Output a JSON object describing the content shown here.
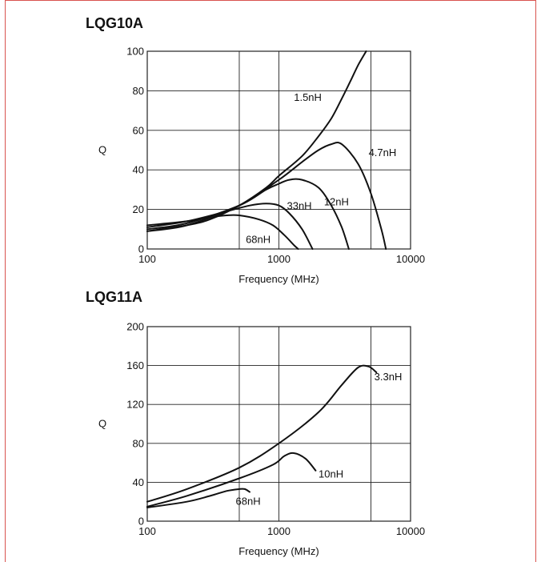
{
  "chart_data": [
    {
      "type": "line",
      "title": "LQG10A",
      "xlabel": "Frequency (MHz)",
      "ylabel": "Q",
      "xscale": "log",
      "xlim": [
        100,
        10000
      ],
      "ylim": [
        0,
        100
      ],
      "xticks": [
        "100",
        "1000",
        "10000"
      ],
      "yticks": [
        "0",
        "20",
        "40",
        "60",
        "80",
        "100"
      ],
      "x_gridlines": [
        100,
        500,
        1000,
        5000,
        10000
      ],
      "grid": true,
      "series": [
        {
          "name": "1.5nH",
          "x": [
            100,
            200,
            300,
            500,
            800,
            1000,
            1500,
            2000,
            2500,
            3000,
            3500,
            4000,
            4600
          ],
          "y": [
            9,
            12,
            15,
            22,
            31,
            37,
            47,
            57,
            66,
            76,
            85,
            93,
            100
          ]
        },
        {
          "name": "4.7nH",
          "x": [
            100,
            200,
            500,
            1000,
            1500,
            2000,
            2500,
            3000,
            4000,
            5000,
            6000,
            6500
          ],
          "y": [
            9,
            12,
            22,
            35,
            44,
            50,
            53,
            53,
            43,
            28,
            10,
            0
          ]
        },
        {
          "name": "12nH",
          "x": [
            100,
            200,
            500,
            800,
            1000,
            1200,
            1500,
            2000,
            2500,
            3000,
            3400
          ],
          "y": [
            10,
            13,
            22,
            30,
            33,
            35,
            35,
            31,
            22,
            11,
            0
          ]
        },
        {
          "name": "33nH",
          "x": [
            100,
            200,
            400,
            600,
            800,
            1000,
            1200,
            1500,
            1800
          ],
          "y": [
            11,
            14,
            19,
            22,
            23,
            22,
            18,
            10,
            0
          ]
        },
        {
          "name": "68nH",
          "x": [
            100,
            200,
            300,
            400,
            500,
            700,
            900,
            1100,
            1300,
            1400
          ],
          "y": [
            12,
            14,
            16,
            17,
            17,
            15,
            12,
            7,
            2,
            0
          ]
        }
      ],
      "annotations": [
        {
          "text": "1.5nH",
          "x": 1300,
          "y": 75
        },
        {
          "text": "4.7nH",
          "x": 4800,
          "y": 47
        },
        {
          "text": "12nH",
          "x": 2200,
          "y": 22
        },
        {
          "text": "33nH",
          "x": 1150,
          "y": 20
        },
        {
          "text": "68nH",
          "x": 560,
          "y": 3
        }
      ]
    },
    {
      "type": "line",
      "title": "LQG11A",
      "xlabel": "Frequency (MHz)",
      "ylabel": "Q",
      "xscale": "log",
      "xlim": [
        100,
        10000
      ],
      "ylim": [
        0,
        200
      ],
      "xticks": [
        "100",
        "1000",
        "10000"
      ],
      "yticks": [
        "0",
        "40",
        "80",
        "120",
        "160",
        "200"
      ],
      "x_gridlines": [
        100,
        500,
        1000,
        5000,
        10000
      ],
      "grid": true,
      "series": [
        {
          "name": "3.3nH",
          "x": [
            100,
            200,
            500,
            1000,
            2000,
            3000,
            4000,
            4800,
            5500
          ],
          "y": [
            20,
            33,
            55,
            80,
            112,
            140,
            158,
            159,
            153
          ]
        },
        {
          "name": "10nH",
          "x": [
            100,
            200,
            500,
            900,
            1100,
            1300,
            1600,
            1900
          ],
          "y": [
            15,
            26,
            44,
            58,
            67,
            70,
            64,
            52
          ]
        },
        {
          "name": "68nH",
          "x": [
            100,
            200,
            300,
            400,
            500,
            550,
            600
          ],
          "y": [
            14,
            20,
            26,
            31,
            33,
            33,
            30
          ]
        }
      ],
      "annotations": [
        {
          "text": "3.3nH",
          "x": 5300,
          "y": 145
        },
        {
          "text": "10nH",
          "x": 2000,
          "y": 45
        },
        {
          "text": "68nH",
          "x": 470,
          "y": 17
        }
      ]
    }
  ]
}
